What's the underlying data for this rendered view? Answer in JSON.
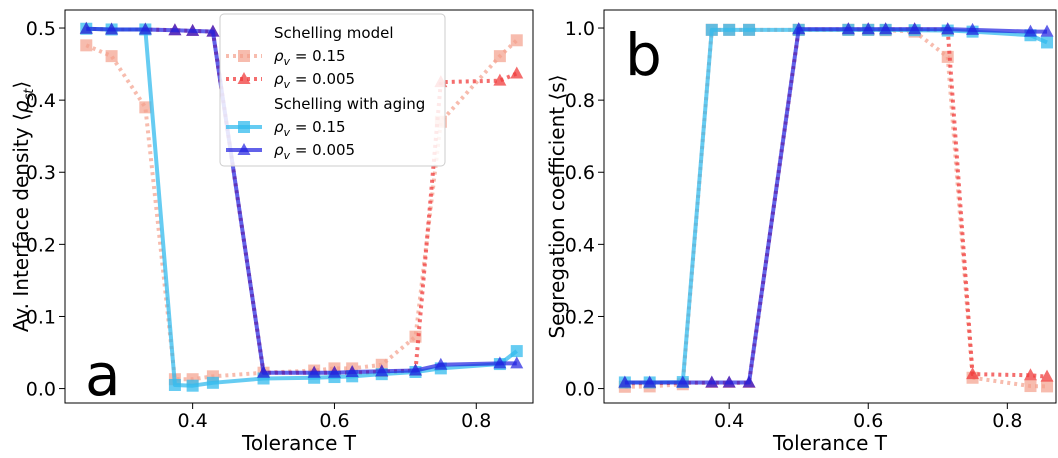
{
  "chart_data": [
    {
      "type": "line",
      "panel_label": "a",
      "xlabel": "Tolerance T",
      "ylabel": "Av. Interface density ⟨ρ_st⟩",
      "xlim": [
        0.22,
        0.88
      ],
      "ylim": [
        -0.02,
        0.525
      ],
      "xticks": [
        0.4,
        0.6,
        0.8
      ],
      "xtick_labels": [
        "0.4",
        "0.6",
        "0.8"
      ],
      "yticks": [
        0.0,
        0.1,
        0.2,
        0.3,
        0.4,
        0.5
      ],
      "ytick_labels": [
        "0.0",
        "0.1",
        "0.2",
        "0.3",
        "0.4",
        "0.5"
      ],
      "grid": false,
      "legend_position": "top-center",
      "series": [
        {
          "group": "Schelling model",
          "name": "ρv = 0.15",
          "color": "#f4a08c",
          "style": "dotted",
          "marker": "square",
          "opacity": 0.7,
          "x": [
            0.25,
            0.2857,
            0.3333,
            0.375,
            0.4,
            0.4286,
            0.5,
            0.5714,
            0.6,
            0.625,
            0.6667,
            0.7143,
            0.75,
            0.8333,
            0.8571
          ],
          "y": [
            0.476,
            0.461,
            0.39,
            0.013,
            0.013,
            0.017,
            0.022,
            0.025,
            0.028,
            0.028,
            0.033,
            0.072,
            0.37,
            0.461,
            0.483
          ]
        },
        {
          "group": "Schelling model",
          "name": "ρv = 0.005",
          "color": "#f03c3c",
          "style": "dotted",
          "marker": "triangle",
          "opacity": 0.75,
          "x": [
            0.25,
            0.2857,
            0.3333,
            0.375,
            0.4,
            0.4286,
            0.5,
            0.5714,
            0.6,
            0.625,
            0.6667,
            0.7143,
            0.75,
            0.8333,
            0.8571
          ],
          "y": [
            0.499,
            0.498,
            0.498,
            0.497,
            0.496,
            0.495,
            0.022,
            0.022,
            0.022,
            0.022,
            0.023,
            0.025,
            0.425,
            0.427,
            0.437
          ]
        },
        {
          "group": "Schelling with aging",
          "name": "ρv = 0.15",
          "color": "#33bbee",
          "style": "solid",
          "marker": "square",
          "opacity": 0.75,
          "x": [
            0.25,
            0.2857,
            0.3333,
            0.375,
            0.4,
            0.4286,
            0.5,
            0.5714,
            0.6,
            0.625,
            0.6667,
            0.7143,
            0.75,
            0.8333,
            0.8571
          ],
          "y": [
            0.499,
            0.498,
            0.498,
            0.005,
            0.004,
            0.008,
            0.014,
            0.015,
            0.016,
            0.017,
            0.02,
            0.023,
            0.028,
            0.034,
            0.052
          ]
        },
        {
          "group": "Schelling with aging",
          "name": "ρv = 0.005",
          "color": "#1f1fe0",
          "style": "solid",
          "marker": "triangle",
          "opacity": 0.7,
          "x": [
            0.25,
            0.2857,
            0.3333,
            0.375,
            0.4,
            0.4286,
            0.5,
            0.5714,
            0.6,
            0.625,
            0.6667,
            0.7143,
            0.75,
            0.8333,
            0.8571
          ],
          "y": [
            0.499,
            0.498,
            0.498,
            0.497,
            0.496,
            0.495,
            0.022,
            0.022,
            0.022,
            0.023,
            0.024,
            0.025,
            0.033,
            0.035,
            0.035
          ]
        }
      ],
      "legend": {
        "groups": [
          "Schelling model",
          "Schelling with aging"
        ],
        "entries": [
          "ρv = 0.15",
          "ρv = 0.005",
          "ρv = 0.15",
          "ρv = 0.005"
        ]
      }
    },
    {
      "type": "line",
      "panel_label": "b",
      "xlabel": "Tolerance T",
      "ylabel": "Segregation coefficient ⟨s⟩",
      "xlim": [
        0.22,
        0.87
      ],
      "ylim": [
        -0.04,
        1.05
      ],
      "xticks": [
        0.4,
        0.6,
        0.8
      ],
      "xtick_labels": [
        "0.4",
        "0.6",
        "0.8"
      ],
      "yticks": [
        0.0,
        0.2,
        0.4,
        0.6,
        0.8,
        1.0
      ],
      "ytick_labels": [
        "0.0",
        "0.2",
        "0.4",
        "0.6",
        "0.8",
        "1.0"
      ],
      "grid": false,
      "series": [
        {
          "group": "Schelling model",
          "name": "ρv = 0.15",
          "color": "#f4a08c",
          "style": "dotted",
          "marker": "square",
          "opacity": 0.7,
          "x": [
            0.25,
            0.2857,
            0.3333,
            0.375,
            0.4,
            0.4286,
            0.5,
            0.5714,
            0.6,
            0.625,
            0.6667,
            0.7143,
            0.75,
            0.8333,
            0.8571
          ],
          "y": [
            0.005,
            0.006,
            0.012,
            0.995,
            0.995,
            0.995,
            0.995,
            0.995,
            0.995,
            0.994,
            0.99,
            0.92,
            0.03,
            0.007,
            0.006
          ]
        },
        {
          "group": "Schelling model",
          "name": "ρv = 0.005",
          "color": "#f03c3c",
          "style": "dotted",
          "marker": "triangle",
          "opacity": 0.75,
          "x": [
            0.25,
            0.2857,
            0.3333,
            0.375,
            0.4,
            0.4286,
            0.5,
            0.5714,
            0.6,
            0.625,
            0.6667,
            0.7143,
            0.75,
            0.8333,
            0.8571
          ],
          "y": [
            0.015,
            0.015,
            0.016,
            0.016,
            0.016,
            0.016,
            0.996,
            0.996,
            0.996,
            0.996,
            0.996,
            0.995,
            0.04,
            0.037,
            0.033
          ]
        },
        {
          "group": "Schelling with aging",
          "name": "ρv = 0.15",
          "color": "#33bbee",
          "style": "solid",
          "marker": "square",
          "opacity": 0.75,
          "x": [
            0.25,
            0.2857,
            0.3333,
            0.375,
            0.4,
            0.4286,
            0.5,
            0.5714,
            0.6,
            0.625,
            0.6667,
            0.7143,
            0.75,
            0.8333,
            0.8571
          ],
          "y": [
            0.017,
            0.017,
            0.018,
            0.995,
            0.995,
            0.995,
            0.995,
            0.995,
            0.995,
            0.995,
            0.994,
            0.993,
            0.99,
            0.98,
            0.96
          ]
        },
        {
          "group": "Schelling with aging",
          "name": "ρv = 0.005",
          "color": "#1f1fe0",
          "style": "solid",
          "marker": "triangle",
          "opacity": 0.7,
          "x": [
            0.25,
            0.2857,
            0.3333,
            0.375,
            0.4,
            0.4286,
            0.5,
            0.5714,
            0.6,
            0.625,
            0.6667,
            0.7143,
            0.75,
            0.8333,
            0.8571
          ],
          "y": [
            0.017,
            0.017,
            0.017,
            0.017,
            0.017,
            0.017,
            0.997,
            0.997,
            0.997,
            0.997,
            0.997,
            0.997,
            0.995,
            0.99,
            0.99
          ]
        }
      ]
    }
  ]
}
